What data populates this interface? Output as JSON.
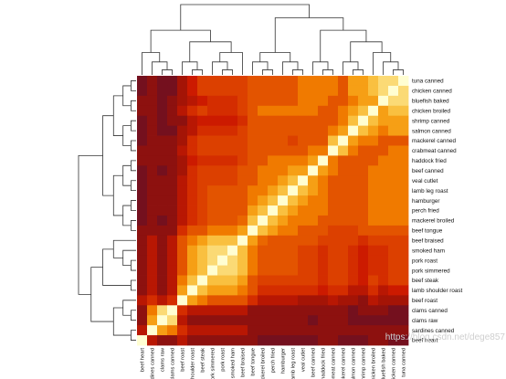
{
  "chart_data": {
    "type": "heatmap",
    "title": "",
    "xlabel": "",
    "ylabel": "",
    "row_labels": [
      "tuna canned",
      "chicken canned",
      "bluefish baked",
      "chicken broiled",
      "shrimp canned",
      "salmon canned",
      "mackerel canned",
      "crabmeat canned",
      "haddock fried",
      "beef canned",
      "veal cutlet",
      "lamb leg roast",
      "hamburger",
      "perch fried",
      "mackerel broiled",
      "beef tongue",
      "beef braised",
      "smoked ham",
      "pork roast",
      "pork simmered",
      "beef steak",
      "lamb shoulder roast",
      "beef roast",
      "clams canned",
      "clams raw",
      "sardines canned",
      "beef heart"
    ],
    "col_labels": [
      "beef heart",
      "sardines canned",
      "clams raw",
      "clams canned",
      "beef roast",
      "lamb shoulder roast",
      "beef steak",
      "pork simmered",
      "pork roast",
      "smoked ham",
      "beef braised",
      "beef tongue",
      "mackerel broiled",
      "perch fried",
      "hamburger",
      "lamb leg roast",
      "veal cutlet",
      "beef canned",
      "haddock fried",
      "crabmeat canned",
      "mackerel canned",
      "salmon canned",
      "shrimp canned",
      "chicken broiled",
      "bluefish baked",
      "chicken canned",
      "tuna canned"
    ],
    "colormap": {
      "name": "heat",
      "low": "#5a0f2c",
      "high": "#fffed2",
      "stops": [
        "#5a0f2c",
        "#9a1208",
        "#cc1a00",
        "#e04a00",
        "#f07a00",
        "#f7a81a",
        "#fad05a",
        "#fde89e",
        "#fffed2"
      ]
    },
    "values": [
      [
        0.5,
        1,
        0.5,
        0.5,
        1.5,
        2.5,
        3.5,
        3.5,
        3.5,
        3.5,
        3.5,
        4,
        4,
        4,
        4,
        4,
        5,
        5,
        5,
        5,
        4,
        6,
        6,
        7,
        8,
        8,
        10
      ],
      [
        0.5,
        1,
        0.5,
        0.5,
        1.5,
        2.5,
        3.5,
        3.5,
        3.5,
        3.5,
        3.5,
        4,
        4,
        4,
        4,
        4,
        5,
        5,
        5,
        5,
        4,
        6,
        6,
        7,
        8,
        10,
        8
      ],
      [
        1,
        1,
        0.5,
        1,
        1.5,
        2,
        2.5,
        3,
        3,
        3,
        3.5,
        4,
        4,
        4,
        4,
        4,
        5,
        5,
        5,
        4,
        4,
        5,
        6,
        6,
        10,
        8,
        8
      ],
      [
        1,
        1,
        0.5,
        1,
        2,
        3,
        3.5,
        3,
        3,
        3,
        3.5,
        4,
        5,
        5,
        5,
        5,
        5,
        5,
        4,
        4,
        5,
        6,
        7,
        10,
        6,
        7,
        7
      ],
      [
        0.5,
        1,
        0.5,
        1,
        1,
        2,
        2.5,
        2.5,
        2.5,
        2.5,
        3,
        4,
        4,
        4,
        4,
        4,
        4,
        4,
        4,
        4,
        5,
        7,
        10,
        7,
        6,
        6,
        6
      ],
      [
        0.5,
        1,
        0.5,
        0.5,
        1.5,
        2,
        3,
        3,
        3,
        3,
        3.5,
        4,
        4,
        4,
        4,
        4,
        4,
        4,
        4,
        5,
        6,
        10,
        7,
        6,
        5,
        6,
        6
      ],
      [
        0.5,
        1,
        1,
        1,
        1.5,
        3,
        3.5,
        3.5,
        3.5,
        3.5,
        3.5,
        4,
        4,
        4,
        4,
        3.5,
        4,
        4,
        4,
        7,
        10,
        6,
        5,
        5,
        4,
        4,
        4
      ],
      [
        1,
        1,
        1,
        1,
        2,
        3,
        3.5,
        3.5,
        3.5,
        3.5,
        3.5,
        4,
        4,
        4,
        4,
        4,
        4,
        5,
        5,
        10,
        7,
        5,
        4,
        4,
        4,
        5,
        5
      ],
      [
        1,
        1,
        1,
        1,
        1.5,
        2.5,
        3,
        3,
        3,
        3,
        3.5,
        4,
        4,
        5,
        5,
        5,
        5,
        6,
        10,
        5,
        4,
        4,
        4,
        4,
        5,
        5,
        5
      ],
      [
        0.5,
        1,
        0.5,
        1,
        1.5,
        3,
        3.5,
        3.5,
        3.5,
        3.5,
        4,
        4,
        5,
        5,
        5,
        6,
        6,
        10,
        6,
        5,
        4,
        4,
        4,
        5,
        5,
        5,
        5
      ],
      [
        0.5,
        1,
        1,
        1,
        2,
        3,
        3.5,
        3.5,
        3.5,
        3.5,
        4,
        4,
        5,
        5,
        6,
        7,
        10,
        6,
        5,
        4,
        4,
        4,
        4,
        5,
        5,
        5,
        5
      ],
      [
        0.5,
        1,
        1,
        1,
        2,
        3,
        3.5,
        4,
        4,
        4,
        4,
        5,
        5,
        6,
        7,
        10,
        7,
        6,
        5,
        4,
        4,
        4,
        4,
        5,
        5,
        5,
        5
      ],
      [
        0.5,
        1,
        1,
        1,
        2,
        3,
        3.5,
        4,
        4,
        4,
        4,
        5,
        6,
        7,
        10,
        7,
        6,
        5,
        5,
        4,
        4,
        4,
        4,
        5,
        5,
        5,
        5
      ],
      [
        0.5,
        1,
        1,
        1,
        2,
        3,
        3.5,
        4,
        4,
        4,
        4,
        6,
        7,
        10,
        7,
        6,
        5,
        5,
        5,
        4,
        4,
        4,
        4,
        5,
        5,
        5,
        5
      ],
      [
        0.5,
        1,
        0.5,
        1,
        2,
        3,
        3.5,
        4,
        4,
        4,
        4.5,
        7,
        10,
        7,
        6,
        5,
        5,
        5,
        4,
        4,
        4,
        4,
        4,
        5,
        5,
        5,
        5
      ],
      [
        1,
        1,
        1,
        1,
        3,
        4,
        4,
        5,
        5,
        5,
        6,
        10,
        7,
        6,
        5,
        5,
        4,
        4,
        4,
        3.5,
        3.5,
        3.5,
        4,
        4,
        4,
        4,
        4
      ],
      [
        1,
        2,
        1,
        2,
        4,
        5,
        6,
        7,
        7,
        7,
        10,
        6,
        4.5,
        4,
        4,
        4,
        4,
        4,
        3.5,
        3.5,
        3.5,
        3.5,
        3,
        3.5,
        3.5,
        3.5,
        3.5
      ],
      [
        1,
        2,
        1,
        2,
        4,
        6,
        7,
        8,
        8,
        10,
        7,
        5,
        4,
        4,
        4,
        4,
        3.5,
        3.5,
        3,
        3.5,
        3.5,
        3,
        2.5,
        3,
        3,
        3.5,
        3.5
      ],
      [
        1,
        2,
        1,
        2,
        4,
        6,
        7,
        8,
        10,
        8,
        7,
        5,
        4,
        4,
        4,
        4,
        3.5,
        3.5,
        3,
        3.5,
        3.5,
        3,
        2.5,
        3,
        3,
        3.5,
        3.5
      ],
      [
        1,
        2,
        1,
        2,
        4,
        6,
        7,
        10,
        8,
        8,
        7,
        5,
        4,
        4,
        4,
        4,
        3.5,
        3.5,
        3,
        3.5,
        3.5,
        3,
        2.5,
        3,
        3,
        3.5,
        3.5
      ],
      [
        1,
        2,
        1,
        2,
        5,
        7,
        10,
        7,
        7,
        7,
        6,
        4,
        3.5,
        3.5,
        3.5,
        3.5,
        3.5,
        3.5,
        3,
        3.5,
        3.5,
        3,
        2.5,
        3.5,
        3,
        3.5,
        3.5
      ],
      [
        1,
        2,
        1,
        2,
        6,
        10,
        7,
        6,
        6,
        6,
        5,
        4,
        3,
        3,
        3,
        3,
        3,
        3,
        2.5,
        3,
        3,
        2,
        2,
        3,
        2,
        2.5,
        2.5
      ],
      [
        2,
        3,
        2,
        3,
        10,
        6,
        5,
        4,
        4,
        4,
        4,
        3,
        2,
        2,
        2,
        2,
        1.5,
        1.5,
        1.5,
        2,
        1.5,
        1.5,
        1,
        2,
        1.5,
        1.5,
        1.5
      ],
      [
        1,
        5,
        8,
        10,
        3,
        2,
        2,
        2,
        2,
        2,
        2,
        1,
        1,
        1,
        1,
        1,
        1,
        1,
        1,
        1,
        1,
        0.5,
        1,
        1,
        1,
        0.5,
        0.5
      ],
      [
        1,
        6,
        10,
        8,
        2,
        1,
        1,
        1,
        1,
        1,
        1,
        1,
        1,
        1,
        1,
        1,
        1,
        0.5,
        1,
        1,
        1,
        0.5,
        0.5,
        0.5,
        0.5,
        0.5,
        0.5
      ],
      [
        2,
        10,
        6,
        5,
        3,
        2,
        2,
        2,
        2,
        2,
        2,
        1,
        1,
        1,
        1,
        1,
        1,
        1,
        1,
        1,
        1,
        1,
        1,
        1,
        1,
        1,
        1
      ],
      [
        10,
        2,
        1,
        1,
        2,
        1,
        1,
        1,
        1,
        1,
        1,
        1,
        0.5,
        0.5,
        0.5,
        0.5,
        0.5,
        0.5,
        1,
        1,
        0.5,
        0.5,
        0.5,
        1,
        1,
        0.5,
        0.5
      ]
    ],
    "value_range": [
      0,
      10
    ],
    "watermark": "https://blog.csdn.net/dege857"
  }
}
